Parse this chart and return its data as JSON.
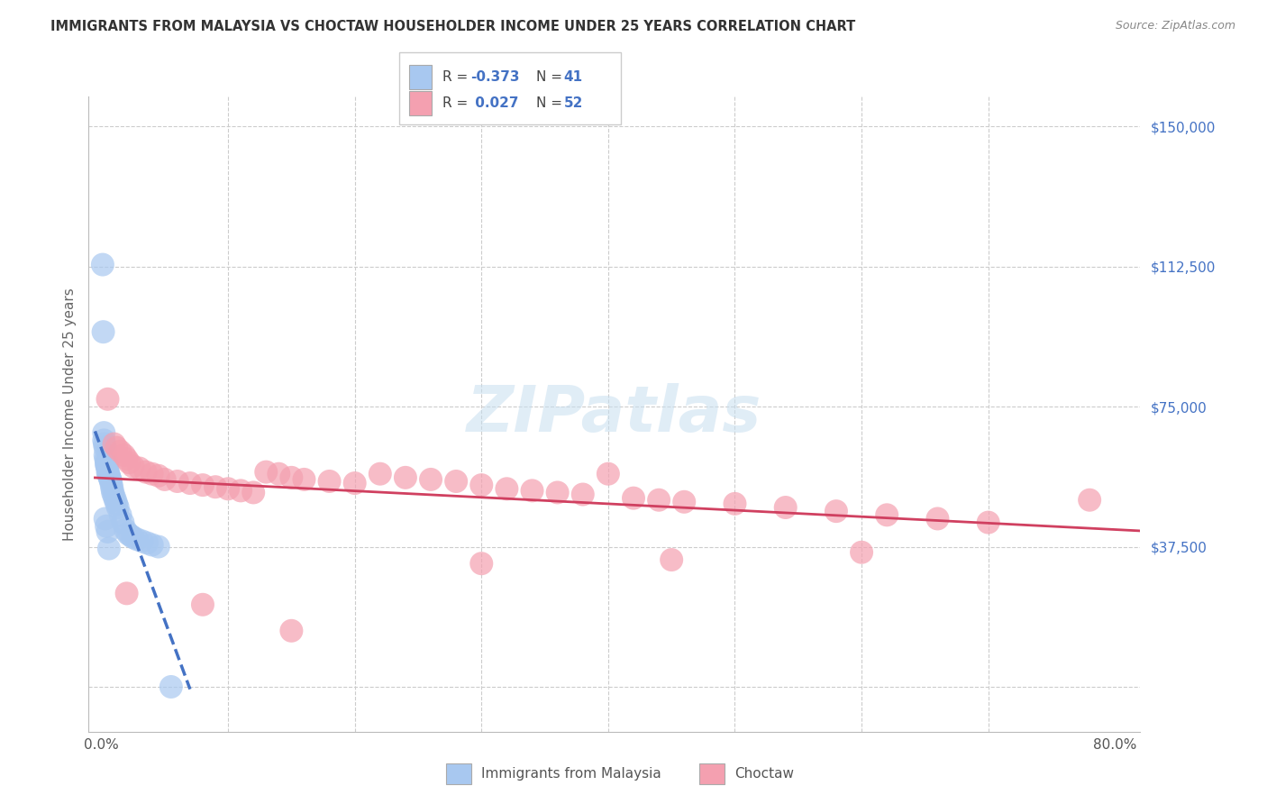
{
  "title": "IMMIGRANTS FROM MALAYSIA VS CHOCTAW HOUSEHOLDER INCOME UNDER 25 YEARS CORRELATION CHART",
  "source": "Source: ZipAtlas.com",
  "ylabel": "Householder Income Under 25 years",
  "yticks": [
    0,
    37500,
    75000,
    112500,
    150000
  ],
  "ytick_labels": [
    "",
    "$37,500",
    "$75,000",
    "$112,500",
    "$150,000"
  ],
  "xticks": [
    0,
    10,
    20,
    30,
    40,
    50,
    60,
    70,
    80
  ],
  "xtick_labels": [
    "0.0%",
    "",
    "",
    "",
    "",
    "",
    "",
    "",
    "80.0%"
  ],
  "xmin": -1,
  "xmax": 82,
  "ymin": -12000,
  "ymax": 158000,
  "blue_R": "-0.373",
  "blue_N": "41",
  "pink_R": " 0.027",
  "pink_N": "52",
  "blue_scatter_color": "#a8c8f0",
  "pink_scatter_color": "#f4a0b0",
  "blue_line_color": "#4472c4",
  "pink_line_color": "#d04060",
  "grid_color": "#cccccc",
  "legend_blue_label": "Immigrants from Malaysia",
  "legend_pink_label": "Choctaw",
  "watermark": "ZIPatlas",
  "title_color": "#333333",
  "source_color": "#888888",
  "axis_label_color": "#4472c4",
  "ylabel_color": "#666666",
  "blue_x": [
    0.1,
    0.15,
    0.2,
    0.2,
    0.25,
    0.3,
    0.3,
    0.35,
    0.4,
    0.4,
    0.45,
    0.5,
    0.5,
    0.55,
    0.6,
    0.65,
    0.7,
    0.75,
    0.8,
    0.85,
    0.9,
    1.0,
    1.1,
    1.2,
    1.3,
    1.5,
    1.7,
    1.9,
    2.1,
    2.3,
    2.5,
    2.8,
    3.2,
    3.6,
    4.0,
    4.5,
    0.3,
    0.4,
    0.5,
    0.6,
    5.5
  ],
  "blue_y": [
    113000,
    95000,
    68000,
    66000,
    65000,
    64000,
    62000,
    61000,
    60000,
    59500,
    59000,
    58500,
    57500,
    57000,
    56500,
    56000,
    55500,
    55000,
    54000,
    53000,
    52000,
    51000,
    50000,
    49000,
    48000,
    46000,
    44000,
    42000,
    41000,
    40500,
    40000,
    39500,
    39000,
    38500,
    38000,
    37500,
    45000,
    43000,
    41500,
    37000,
    0
  ],
  "pink_x": [
    0.5,
    1.0,
    1.2,
    1.5,
    1.8,
    2.0,
    2.2,
    2.5,
    3.0,
    3.5,
    4.0,
    4.5,
    5.0,
    6.0,
    7.0,
    8.0,
    9.0,
    10.0,
    11.0,
    12.0,
    13.0,
    14.0,
    15.0,
    16.0,
    18.0,
    20.0,
    22.0,
    24.0,
    26.0,
    28.0,
    30.0,
    32.0,
    34.0,
    36.0,
    38.0,
    40.0,
    42.0,
    44.0,
    46.0,
    50.0,
    54.0,
    58.0,
    62.0,
    66.0,
    70.0,
    78.0,
    2.0,
    8.0,
    15.0,
    30.0,
    45.0,
    60.0
  ],
  "pink_y": [
    77000,
    65000,
    64000,
    63000,
    62000,
    61000,
    60000,
    59000,
    58500,
    57500,
    57000,
    56500,
    55500,
    55000,
    54500,
    54000,
    53500,
    53000,
    52500,
    52000,
    57500,
    57000,
    56000,
    55500,
    55000,
    54500,
    57000,
    56000,
    55500,
    55000,
    54000,
    53000,
    52500,
    52000,
    51500,
    57000,
    50500,
    50000,
    49500,
    49000,
    48000,
    47000,
    46000,
    45000,
    44000,
    50000,
    25000,
    22000,
    15000,
    33000,
    34000,
    36000
  ]
}
